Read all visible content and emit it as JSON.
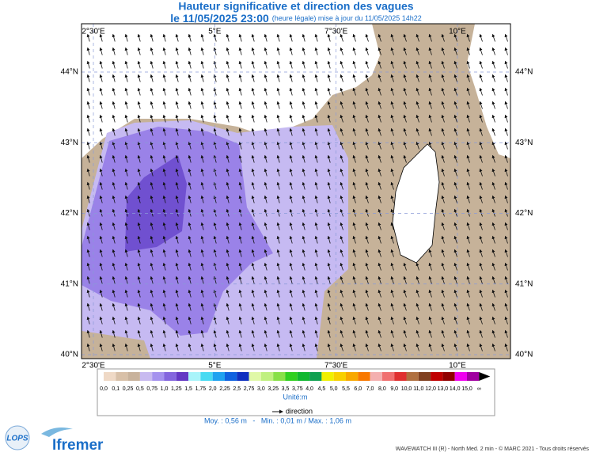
{
  "header": {
    "title": "Hauteur significative et direction des vagues",
    "date": "le 11/05/2025 23:00",
    "note": "(heure légale) mise à jour du 11/05/2025 14h22"
  },
  "map": {
    "lon_ticks": [
      {
        "value": 2.5,
        "label": "2°30'E"
      },
      {
        "value": 5,
        "label": "5°E"
      },
      {
        "value": 7.5,
        "label": "7°30'E"
      },
      {
        "value": 10,
        "label": "10°E"
      }
    ],
    "lat_ticks": [
      {
        "value": 44,
        "label": "44°N"
      },
      {
        "value": 43,
        "label": "43°N"
      },
      {
        "value": 42,
        "label": "42°N"
      },
      {
        "value": 41,
        "label": "41°N"
      },
      {
        "value": 40,
        "label": "40°N"
      }
    ]
  },
  "legend": {
    "labels": [
      "0,0",
      "0,1",
      "0,25",
      "0,5",
      "0,75",
      "1,0",
      "1,25",
      "1,5",
      "1,75",
      "2,0",
      "2,25",
      "2,5",
      "2,75",
      "3,0",
      "3,25",
      "3,5",
      "3,75",
      "4,0",
      "4,5",
      "5,0",
      "5,5",
      "6,0",
      "7,0",
      "8,0",
      "9,0",
      "10,0",
      "11,0",
      "12,0",
      "13,0",
      "14,0",
      "15,0",
      "∞"
    ],
    "colors": [
      "#efd9c6",
      "#d8c0a8",
      "#c8b29c",
      "#c8baf0",
      "#a592ee",
      "#8466de",
      "#6438c4",
      "#a8f4fa",
      "#48daf2",
      "#20a2f0",
      "#1062e0",
      "#1030c0",
      "#e0f8a8",
      "#c0f080",
      "#88e048",
      "#30d020",
      "#10b830",
      "#10a050",
      "#f0f000",
      "#f8d000",
      "#f8a800",
      "#f87800",
      "#f4b0b0",
      "#f07070",
      "#e03030",
      "#b07040",
      "#804020",
      "#c00000",
      "#900000",
      "#f000f0",
      "#a000a0"
    ],
    "unit": "Unité:m",
    "direction": "direction"
  },
  "stats": "Moy. : 0,56 m   -   Min. : 0,01 m / Max. : 1,06 m",
  "footer": {
    "credit": "WAVEWATCH III (R) - North Med. 2 min - © MARC 2021 - Tous droits réservés",
    "logo": "Ifremer",
    "lab": "LOPS"
  }
}
